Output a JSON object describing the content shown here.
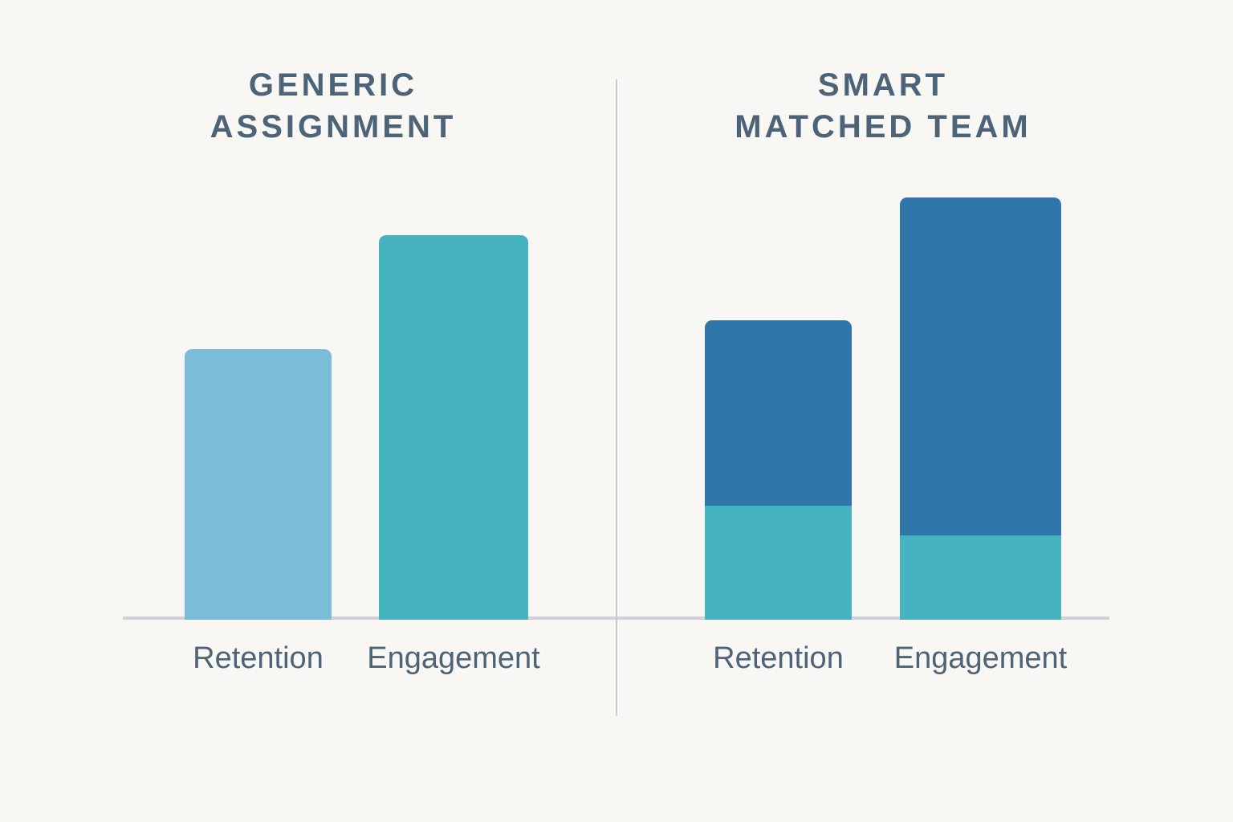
{
  "colors": {
    "background": "#f8f7f4",
    "title_text": "#4d6377",
    "label_text": "#4d6377",
    "light_blue": "#7cbcd9",
    "teal": "#46b3c1",
    "dark_blue": "#2f77ab",
    "baseline_line": "#d2d2d6",
    "divider_line": "#c9cbd0"
  },
  "panels": [
    {
      "id": "generic-assignment",
      "title_lines": [
        "GENERIC",
        "ASSIGNMENT"
      ],
      "bars": [
        {
          "category": "Retention",
          "segments": [
            {
              "name": "retention-level",
              "value": 64,
              "color": "#7cbcd9"
            }
          ]
        },
        {
          "category": "Engagement",
          "segments": [
            {
              "name": "engagement-level",
              "value": 91,
              "color": "#46b3c1"
            }
          ]
        }
      ]
    },
    {
      "id": "smart-matched-team",
      "title_lines": [
        "SMART",
        "MATCHED TEAM"
      ],
      "bars": [
        {
          "category": "Retention",
          "segments": [
            {
              "name": "base-level",
              "value": 27,
              "color": "#46b3c1"
            },
            {
              "name": "uplift",
              "value": 44,
              "color": "#2f77ab"
            }
          ]
        },
        {
          "category": "Engagement",
          "segments": [
            {
              "name": "base-level",
              "value": 20,
              "color": "#46b3c1"
            },
            {
              "name": "uplift",
              "value": 80,
              "color": "#2f77ab"
            }
          ]
        }
      ]
    }
  ],
  "chart_data": [
    {
      "type": "bar",
      "title": "GENERIC ASSIGNMENT",
      "categories": [
        "Retention",
        "Engagement"
      ],
      "values": [
        64,
        91
      ],
      "bar_colors": [
        "#7cbcd9",
        "#46b3c1"
      ],
      "xlabel": "",
      "ylabel": "",
      "ylim": [
        0,
        100
      ],
      "grid": false,
      "legend_position": "none",
      "axes_shown": false,
      "value_basis": "estimated from bar heights, tallest bar across both panels = 100"
    },
    {
      "type": "bar",
      "subtype": "stacked",
      "title": "SMART MATCHED TEAM",
      "categories": [
        "Retention",
        "Engagement"
      ],
      "series": [
        {
          "name": "base",
          "values": [
            27,
            20
          ],
          "color": "#46b3c1"
        },
        {
          "name": "uplift",
          "values": [
            44,
            80
          ],
          "color": "#2f77ab"
        }
      ],
      "totals": [
        71,
        100
      ],
      "xlabel": "",
      "ylabel": "",
      "ylim": [
        0,
        100
      ],
      "grid": false,
      "legend_position": "none",
      "axes_shown": false,
      "value_basis": "estimated from bar heights, tallest bar across both panels = 100"
    }
  ]
}
